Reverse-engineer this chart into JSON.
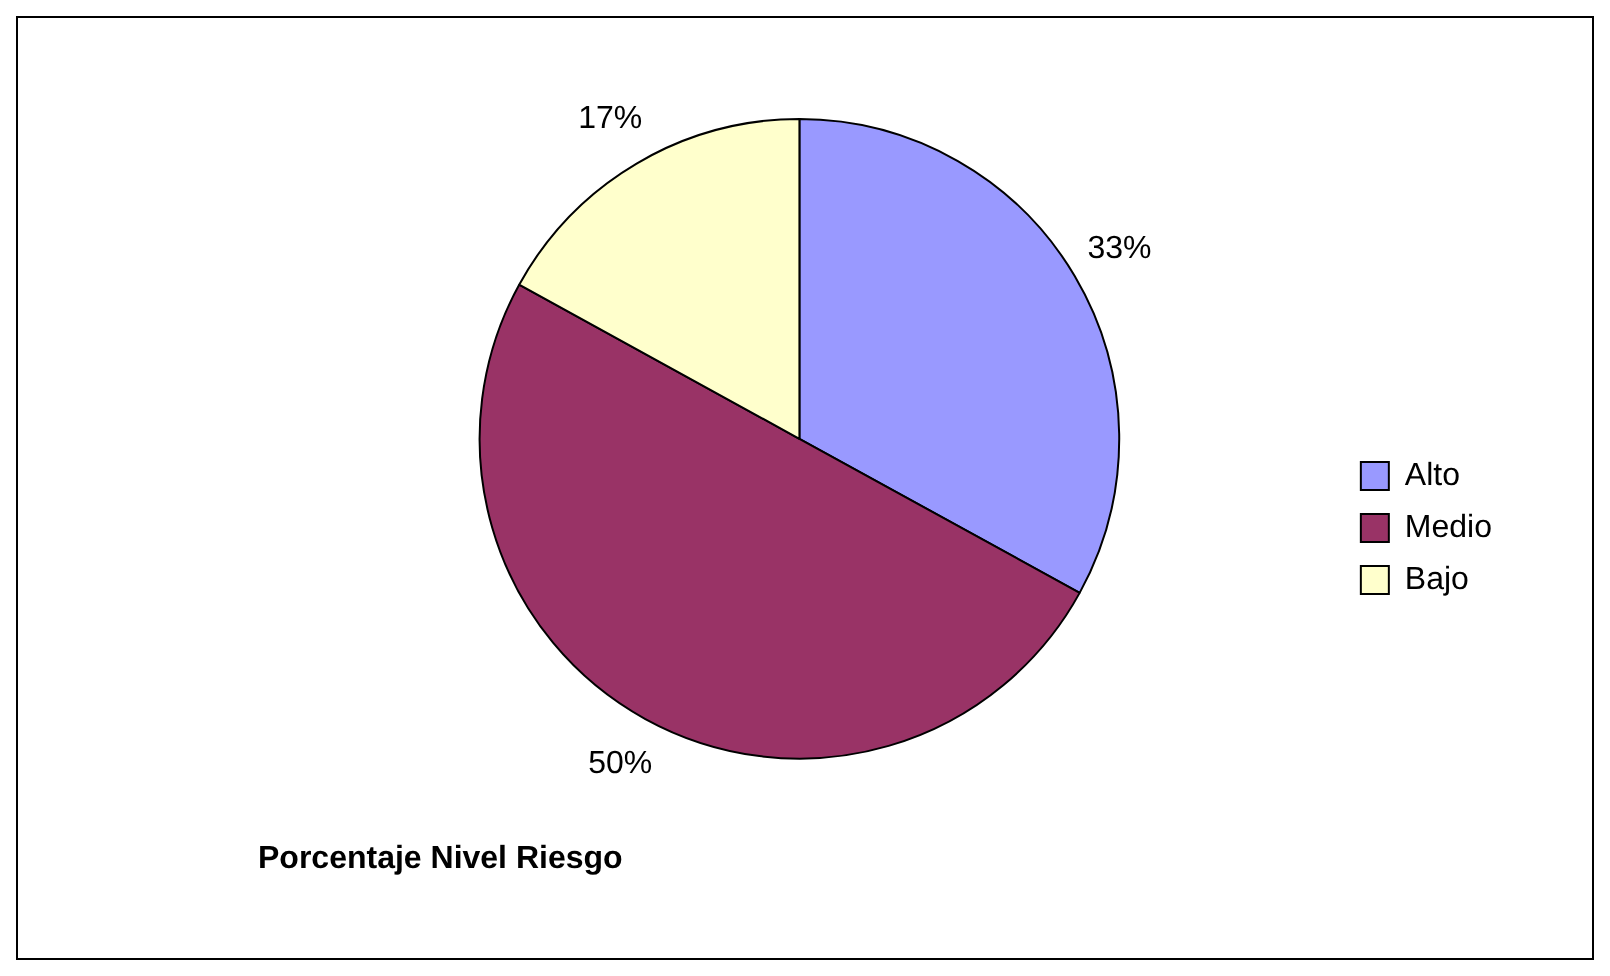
{
  "chart_data": {
    "type": "pie",
    "title": "Porcentaje Nivel Riesgo",
    "categories": [
      "Alto",
      "Medio",
      "Bajo"
    ],
    "values": [
      33,
      50,
      17
    ],
    "colors": [
      "#9999ff",
      "#993366",
      "#ffffcc"
    ],
    "value_labels": [
      "33%",
      "50%",
      "17%"
    ],
    "legend": "right"
  }
}
